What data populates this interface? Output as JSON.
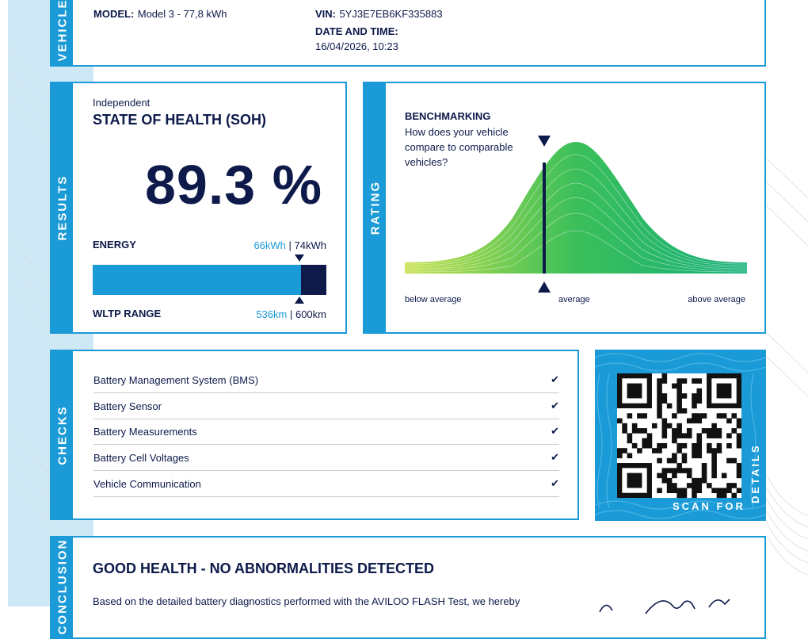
{
  "vehicle": {
    "section_label": "VEHICLE",
    "model_label": "MODEL:",
    "model_value": "Model 3 - 77,8 kWh",
    "vin_label": "VIN:",
    "vin_value": "5YJ3E7EB6KF335883",
    "datetime_label": "DATE AND TIME:",
    "datetime_value": "16/04/2026, 10:23"
  },
  "results": {
    "section_label": "RESULTS",
    "kicker": "Independent",
    "title": "STATE OF HEALTH (SOH)",
    "soh_value": "89.3 %",
    "soh_fraction": 0.893,
    "energy_label": "ENERGY",
    "energy_current": "66kWh",
    "energy_separator": " | ",
    "energy_total": "74kWh",
    "range_label": "WLTP RANGE",
    "range_current": "536km",
    "range_separator": " | ",
    "range_total": "600km"
  },
  "rating": {
    "section_label": "RATING",
    "title": "BENCHMARKING",
    "question": "How does your vehicle compare to comparable vehicles?",
    "question_lines": [
      "How does your vehicle",
      "compare to comparable",
      "vehicles?"
    ],
    "axis_below": "below average",
    "axis_average": "average",
    "axis_above": "above average"
  },
  "checks": {
    "section_label": "CHECKS",
    "items": [
      {
        "label": "Battery Management System (BMS)",
        "status": "✔"
      },
      {
        "label": "Battery Sensor",
        "status": "✔"
      },
      {
        "label": "Battery Measurements",
        "status": "✔"
      },
      {
        "label": "Battery Cell Voltages",
        "status": "✔"
      },
      {
        "label": "Vehicle Communication",
        "status": "✔"
      }
    ]
  },
  "qr": {
    "scan_label": "SCAN FOR",
    "details_label": "DETAILS"
  },
  "conclusion": {
    "section_label": "CONCLUSION",
    "headline": "GOOD HEALTH - NO ABNORMALITIES DETECTED",
    "paragraph": "Based on the detailed battery diagnostics performed with the AVILOO FLASH Test, we hereby"
  },
  "colors": {
    "accent": "#1a9ad6",
    "navy": "#0d1a4a",
    "curve_light": "#c5e04a",
    "curve_dark": "#16b07a"
  }
}
